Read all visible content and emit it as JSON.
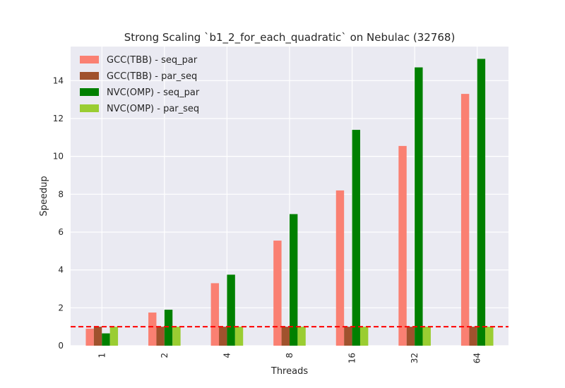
{
  "chart_data": {
    "type": "bar",
    "title": "Strong Scaling `b1_2_for_each_quadratic` on Nebulac (32768)",
    "xlabel": "Threads",
    "ylabel": "Speedup",
    "categories": [
      "1",
      "2",
      "4",
      "8",
      "16",
      "32",
      "64"
    ],
    "ylim": [
      0,
      15.8
    ],
    "yticks": [
      0,
      2,
      4,
      6,
      8,
      10,
      12,
      14
    ],
    "grid": true,
    "legend_position": "top-left",
    "reference_line": {
      "y": 1.0,
      "color": "#ff0000",
      "style": "dashed"
    },
    "series": [
      {
        "name": "GCC(TBB) - seq_par",
        "color": "#fa8072",
        "values": [
          0.9,
          1.75,
          3.3,
          5.55,
          8.2,
          10.55,
          13.3
        ]
      },
      {
        "name": "GCC(TBB) - par_seq",
        "color": "#a0522d",
        "values": [
          1.0,
          1.0,
          1.0,
          1.0,
          1.0,
          1.0,
          1.0
        ]
      },
      {
        "name": "NVC(OMP) - seq_par",
        "color": "#008000",
        "values": [
          0.65,
          1.9,
          3.75,
          6.95,
          11.4,
          14.7,
          15.15
        ]
      },
      {
        "name": "NVC(OMP) - par_seq",
        "color": "#9acd32",
        "values": [
          1.0,
          1.0,
          1.0,
          1.0,
          1.0,
          1.0,
          1.0
        ]
      }
    ]
  }
}
